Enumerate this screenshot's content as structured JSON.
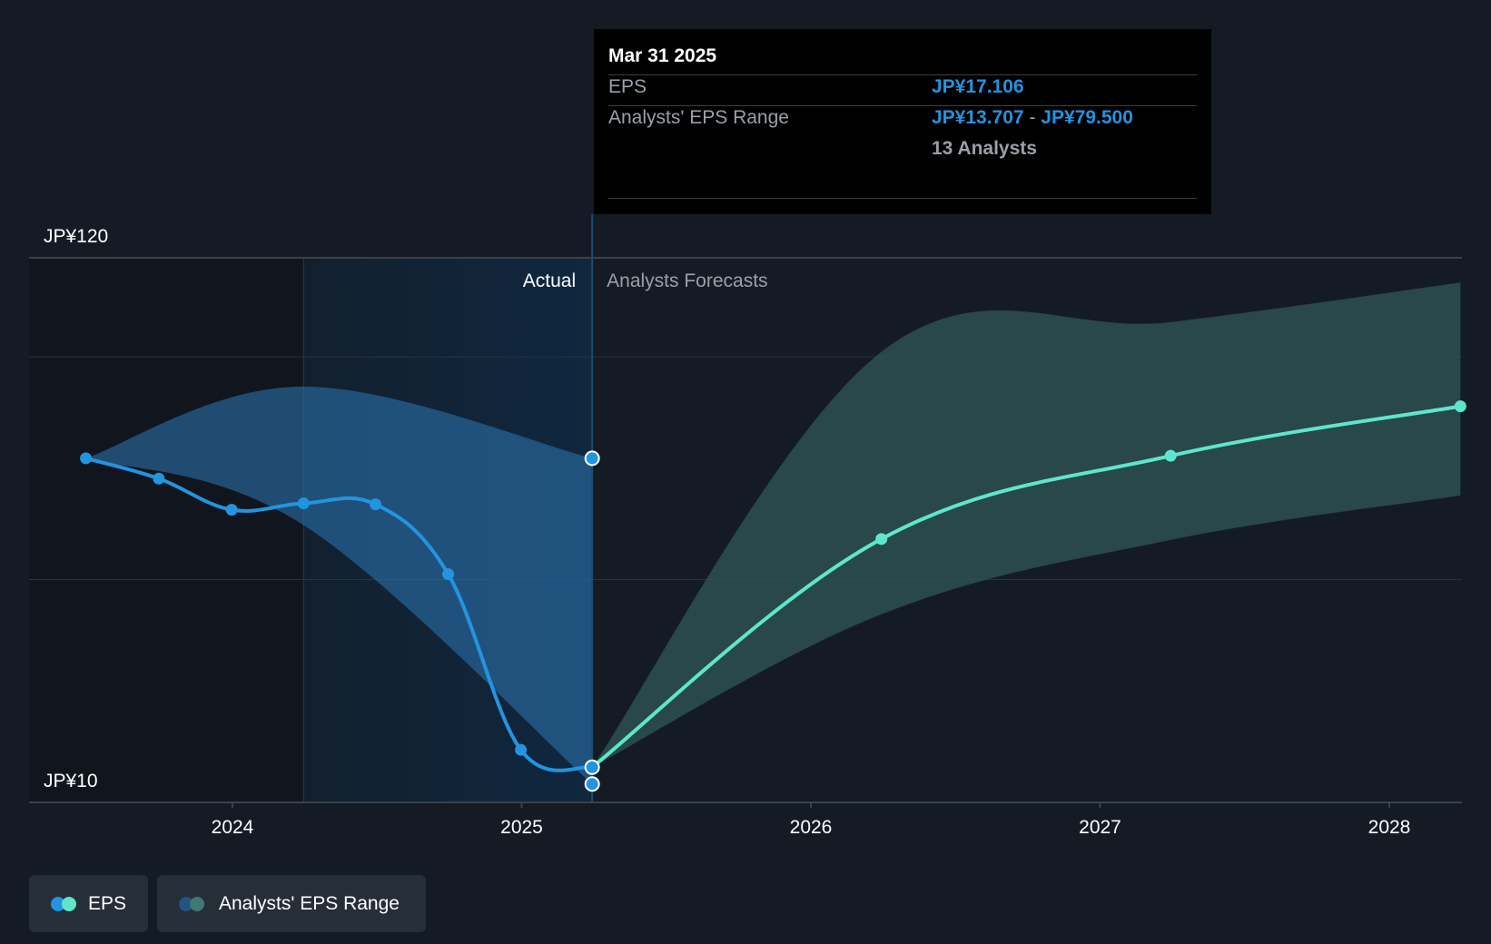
{
  "chart_data": {
    "type": "line",
    "title": "",
    "y_axis": {
      "labels": [
        "JP¥120",
        "JP¥10"
      ],
      "min": 10,
      "max": 120
    },
    "x_axis": {
      "ticks": [
        "2024",
        "2025",
        "2026",
        "2027",
        "2028"
      ]
    },
    "sections": {
      "actual_label": "Actual",
      "forecast_label": "Analysts Forecasts"
    },
    "series": [
      {
        "name": "EPS",
        "color": "#2394df",
        "points": [
          {
            "x": "2023-06-30",
            "y": 79.5
          },
          {
            "x": "2023-09-30",
            "y": 75.4
          },
          {
            "x": "2023-12-31",
            "y": 69.1
          },
          {
            "x": "2024-03-31",
            "y": 70.4
          },
          {
            "x": "2024-06-30",
            "y": 70.2
          },
          {
            "x": "2024-09-30",
            "y": 56.1
          },
          {
            "x": "2024-12-31",
            "y": 20.6
          },
          {
            "x": "2025-03-31",
            "y": 17.106
          }
        ]
      },
      {
        "name": "EPS",
        "color": "#5ee6cc",
        "points": [
          {
            "x": "2025-03-31",
            "y": 17.106
          },
          {
            "x": "2026-03-31",
            "y": 63.2
          },
          {
            "x": "2027-03-31",
            "y": 80.0
          },
          {
            "x": "2028-03-31",
            "y": 90.0
          }
        ]
      }
    ],
    "ranges": [
      {
        "name": "Analysts' EPS Range",
        "color": "#2a6ea6",
        "points": [
          {
            "x": "2023-06-30",
            "low": 79.5,
            "high": 79.5
          },
          {
            "x": "2024-03-31",
            "low": 66.0,
            "high": 94.0
          },
          {
            "x": "2025-03-31",
            "low": 13.707,
            "high": 79.5
          }
        ]
      },
      {
        "name": "Analysts' EPS Range",
        "color": "#2e5455",
        "points": [
          {
            "x": "2025-03-31",
            "low": 17.106,
            "high": 17.106
          },
          {
            "x": "2026-03-31",
            "low": 48.0,
            "high": 101.0
          },
          {
            "x": "2027-03-31",
            "low": 63.0,
            "high": 107.0
          },
          {
            "x": "2028-03-31",
            "low": 72.0,
            "high": 115.0
          }
        ]
      }
    ],
    "grid": true
  },
  "tooltip": {
    "date": "Mar 31 2025",
    "eps_label": "EPS",
    "eps_value": "JP¥17.106",
    "range_label": "Analysts' EPS Range",
    "range_low": "JP¥13.707",
    "range_sep": "-",
    "range_high": "JP¥79.500",
    "analysts": "13 Analysts"
  },
  "legend": {
    "eps": "EPS",
    "range": "Analysts' EPS Range"
  }
}
